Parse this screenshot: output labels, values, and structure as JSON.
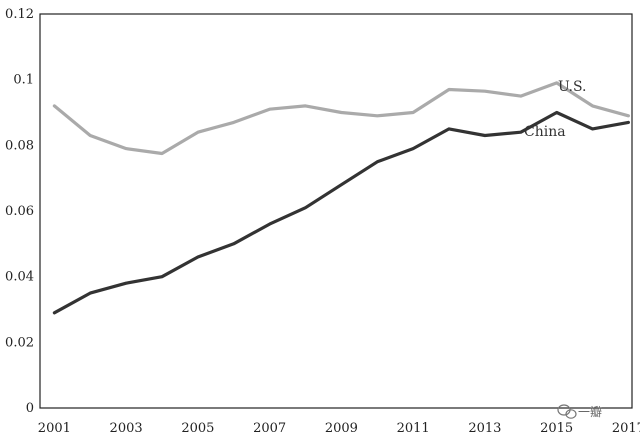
{
  "chart_data": {
    "type": "line",
    "title": "",
    "xlabel": "",
    "ylabel": "",
    "x": [
      2001,
      2002,
      2003,
      2004,
      2005,
      2006,
      2007,
      2008,
      2009,
      2010,
      2011,
      2012,
      2013,
      2014,
      2015,
      2016,
      2017
    ],
    "xticks": [
      "2001",
      "2003",
      "2005",
      "2007",
      "2009",
      "2011",
      "2013",
      "2015",
      "2017"
    ],
    "yticks": [
      "0",
      "0.02",
      "0.04",
      "0.06",
      "0.08",
      "0.1",
      "0.12"
    ],
    "ylim": [
      0,
      0.12
    ],
    "xlim": [
      2000.6,
      2017.1
    ],
    "grid": false,
    "series": [
      {
        "name": "U.S.",
        "color": "#aaaaaa",
        "values": [
          0.092,
          0.083,
          0.079,
          0.0775,
          0.084,
          0.087,
          0.091,
          0.092,
          0.09,
          0.089,
          0.09,
          0.097,
          0.0965,
          0.095,
          0.099,
          0.092,
          0.089
        ]
      },
      {
        "name": "China",
        "color": "#333333",
        "values": [
          0.029,
          0.035,
          0.038,
          0.04,
          0.046,
          0.05,
          0.056,
          0.061,
          0.068,
          0.075,
          0.079,
          0.085,
          0.083,
          0.084,
          0.09,
          0.085,
          0.087
        ]
      }
    ]
  },
  "watermark": {
    "icon": "wechat-icon",
    "text": "一瓣"
  }
}
